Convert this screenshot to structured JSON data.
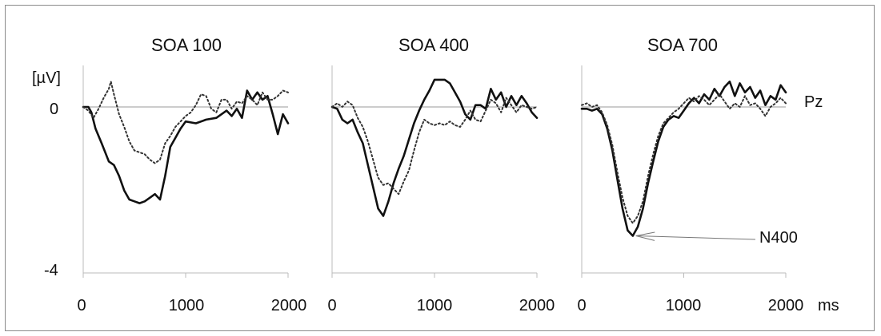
{
  "chart_data": {
    "type": "line",
    "units": {
      "y": "[µV]",
      "x": "ms"
    },
    "channel_label": "Pz",
    "annotation": "N400",
    "ylim": [
      -4,
      0.6
    ],
    "xlim": [
      0,
      2000
    ],
    "y_ticks": [
      "0",
      "-4"
    ],
    "x_ticks": [
      "0",
      "1000",
      "2000"
    ],
    "grid": false,
    "colors": {
      "solid": "#111111",
      "dotted": "#333333",
      "zero_line": "#9a9a9a",
      "axes": "#bbbbbb"
    },
    "panels": [
      {
        "title": "SOA 100",
        "series": [
          {
            "style": "solid",
            "x": [
              0,
              50,
              80,
              120,
              180,
              250,
              300,
              350,
              400,
              450,
              500,
              550,
              600,
              650,
              700,
              750,
              800,
              850,
              900,
              950,
              1000,
              1100,
              1200,
              1300,
              1400,
              1450,
              1500,
              1550,
              1600,
              1650,
              1700,
              1750,
              1800,
              1850,
              1900,
              1950,
              2000
            ],
            "y": [
              0,
              0,
              -0.15,
              -0.6,
              -1.0,
              -1.5,
              -1.6,
              -1.9,
              -2.3,
              -2.55,
              -2.6,
              -2.65,
              -2.6,
              -2.5,
              -2.4,
              -2.55,
              -1.9,
              -1.1,
              -0.85,
              -0.6,
              -0.4,
              -0.45,
              -0.35,
              -0.3,
              -0.1,
              -0.25,
              -0.05,
              -0.3,
              0.45,
              0.2,
              0.4,
              0.2,
              0.3,
              -0.2,
              -0.75,
              -0.2,
              -0.45
            ]
          },
          {
            "style": "dotted",
            "x": [
              0,
              50,
              100,
              150,
              200,
              250,
              270,
              300,
              350,
              400,
              450,
              500,
              550,
              600,
              650,
              700,
              750,
              800,
              850,
              900,
              950,
              1000,
              1050,
              1100,
              1150,
              1200,
              1250,
              1300,
              1350,
              1400,
              1450,
              1500,
              1550,
              1600,
              1650,
              1700,
              1750,
              1800,
              1850,
              1900,
              1950,
              2000
            ],
            "y": [
              0,
              -0.1,
              -0.3,
              -0.05,
              0.25,
              0.5,
              0.7,
              0.35,
              -0.2,
              -0.55,
              -0.95,
              -1.2,
              -1.25,
              -1.3,
              -1.45,
              -1.55,
              -1.45,
              -1.0,
              -0.8,
              -0.55,
              -0.4,
              -0.25,
              -0.15,
              0.05,
              0.35,
              0.3,
              -0.05,
              -0.15,
              0.2,
              0.2,
              -0.05,
              0.15,
              0.1,
              0.3,
              0.2,
              0.05,
              0.4,
              0.2,
              0.2,
              0.3,
              0.45,
              0.4
            ]
          }
        ]
      },
      {
        "title": "SOA 400",
        "series": [
          {
            "style": "solid",
            "x": [
              0,
              50,
              100,
              150,
              200,
              250,
              300,
              350,
              400,
              450,
              500,
              550,
              600,
              650,
              700,
              750,
              800,
              850,
              900,
              950,
              1000,
              1050,
              1100,
              1150,
              1200,
              1250,
              1300,
              1350,
              1400,
              1450,
              1500,
              1550,
              1600,
              1650,
              1700,
              1750,
              1800,
              1850,
              1900,
              1950,
              2000
            ],
            "y": [
              0,
              -0.05,
              -0.35,
              -0.45,
              -0.35,
              -0.7,
              -1.0,
              -1.6,
              -2.2,
              -2.8,
              -3.0,
              -2.6,
              -2.1,
              -1.7,
              -1.35,
              -0.9,
              -0.45,
              -0.1,
              0.2,
              0.45,
              0.75,
              0.75,
              0.75,
              0.65,
              0.4,
              0.15,
              -0.2,
              -0.35,
              0.05,
              0.05,
              -0.05,
              0.5,
              0.2,
              0.4,
              0.0,
              0.3,
              0.05,
              0.3,
              0.1,
              -0.15,
              -0.3
            ]
          },
          {
            "style": "dotted",
            "x": [
              0,
              50,
              100,
              150,
              200,
              250,
              300,
              350,
              400,
              450,
              500,
              550,
              600,
              650,
              700,
              750,
              800,
              850,
              900,
              950,
              1000,
              1050,
              1100,
              1150,
              1200,
              1250,
              1300,
              1350,
              1400,
              1450,
              1500,
              1550,
              1600,
              1650,
              1700,
              1750,
              1800,
              1850,
              1900,
              1950,
              2000
            ],
            "y": [
              0,
              0.1,
              0.0,
              0.15,
              0.05,
              -0.3,
              -0.55,
              -0.95,
              -1.45,
              -1.95,
              -2.15,
              -2.1,
              -2.25,
              -2.4,
              -2.05,
              -1.75,
              -1.2,
              -0.7,
              -0.35,
              -0.45,
              -0.5,
              -0.45,
              -0.5,
              -0.4,
              -0.5,
              -0.55,
              -0.35,
              -0.1,
              -0.35,
              -0.4,
              -0.1,
              0.2,
              0.1,
              -0.15,
              0.25,
              0.05,
              -0.15,
              0.05,
              0.0,
              -0.05,
              0.0
            ]
          }
        ]
      },
      {
        "title": "SOA 700",
        "series": [
          {
            "style": "solid",
            "x": [
              0,
              50,
              100,
              150,
              200,
              250,
              300,
              350,
              400,
              450,
              500,
              550,
              600,
              650,
              700,
              750,
              800,
              850,
              900,
              950,
              1000,
              1050,
              1100,
              1150,
              1200,
              1250,
              1300,
              1350,
              1400,
              1450,
              1500,
              1550,
              1600,
              1650,
              1700,
              1750,
              1800,
              1850,
              1900,
              1950,
              2000
            ],
            "y": [
              -0.05,
              -0.05,
              -0.1,
              -0.05,
              -0.2,
              -0.6,
              -1.2,
              -2.0,
              -2.8,
              -3.4,
              -3.55,
              -3.3,
              -2.8,
              -2.1,
              -1.5,
              -0.95,
              -0.55,
              -0.35,
              -0.25,
              -0.3,
              -0.1,
              0.1,
              0.25,
              0.1,
              0.35,
              0.2,
              0.5,
              0.3,
              0.55,
              0.7,
              0.3,
              0.65,
              0.4,
              0.55,
              0.25,
              0.45,
              0.05,
              0.3,
              0.2,
              0.6,
              0.4
            ]
          },
          {
            "style": "dotted",
            "x": [
              0,
              50,
              100,
              150,
              200,
              250,
              300,
              350,
              400,
              450,
              500,
              550,
              600,
              650,
              700,
              750,
              800,
              850,
              900,
              950,
              1000,
              1050,
              1100,
              1150,
              1200,
              1250,
              1300,
              1350,
              1400,
              1450,
              1500,
              1550,
              1600,
              1650,
              1700,
              1750,
              1800,
              1850,
              1900,
              1950,
              2000
            ],
            "y": [
              0.05,
              0.1,
              0.0,
              0.05,
              -0.15,
              -0.5,
              -1.05,
              -1.8,
              -2.5,
              -3.0,
              -3.2,
              -3.0,
              -2.6,
              -1.9,
              -1.3,
              -0.8,
              -0.45,
              -0.3,
              -0.15,
              -0.05,
              0.1,
              0.25,
              0.15,
              0.3,
              0.2,
              0.05,
              0.2,
              0.35,
              0.15,
              -0.05,
              0.1,
              0.0,
              0.3,
              0.05,
              0.1,
              -0.05,
              -0.25,
              0.0,
              0.1,
              0.25,
              0.1
            ]
          }
        ]
      }
    ]
  }
}
